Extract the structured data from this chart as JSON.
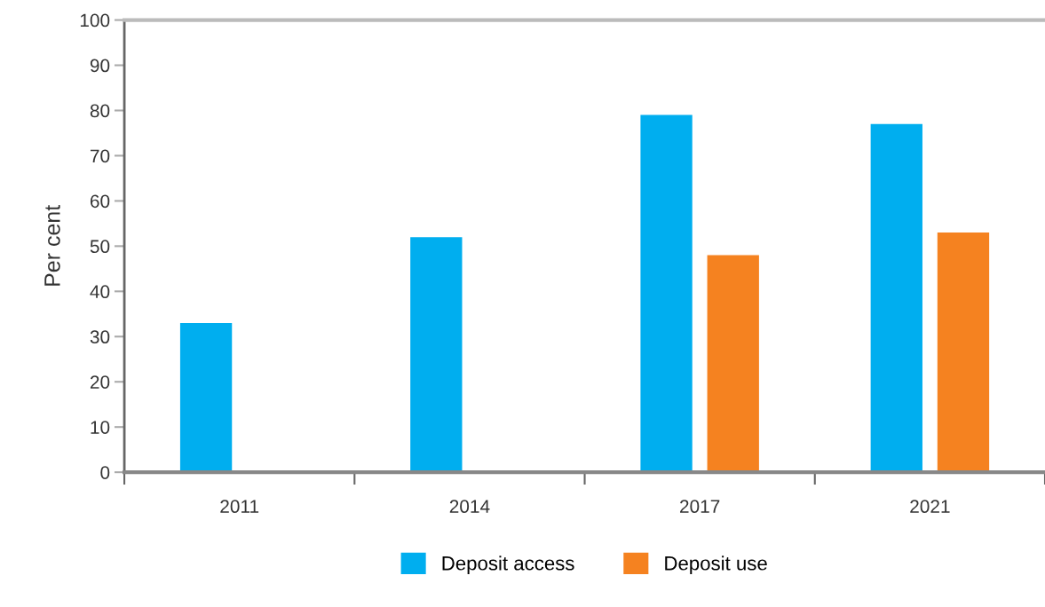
{
  "chart_data": {
    "type": "bar",
    "ylabel": "Per cent",
    "categories": [
      "2011",
      "2014",
      "2017",
      "2021"
    ],
    "series": [
      {
        "name": "Deposit access",
        "color": "#00aeef",
        "values": [
          33,
          52,
          79,
          77
        ]
      },
      {
        "name": "Deposit use",
        "color": "#f58220",
        "values": [
          null,
          null,
          48,
          53
        ]
      }
    ],
    "ylim": [
      0,
      100
    ],
    "yticks": [
      0,
      10,
      20,
      30,
      40,
      50,
      60,
      70,
      80,
      90,
      100
    ],
    "grid": false,
    "legend": "bottom"
  }
}
